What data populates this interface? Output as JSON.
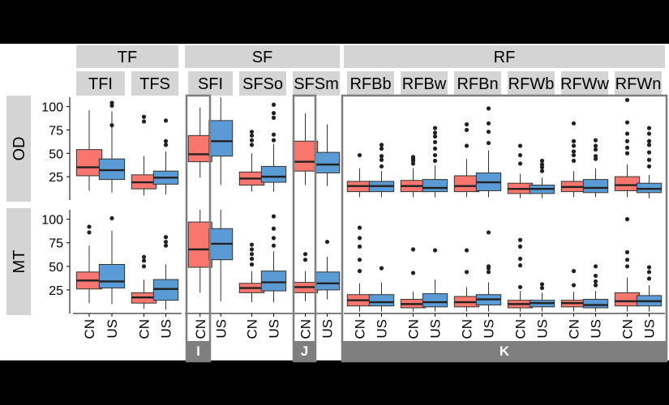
{
  "chart_data": {
    "type": "boxplot",
    "title": "",
    "ylim": [
      0,
      110
    ],
    "yticks": [
      25,
      50,
      75,
      100
    ],
    "groups": [
      "CN",
      "US"
    ],
    "group_colors": {
      "CN": "#f8766d",
      "US": "#5b9bd5"
    },
    "facet_rows": [
      "OD",
      "MT"
    ],
    "categories": [
      {
        "label": "TF",
        "subs": [
          "TFI",
          "TFS"
        ]
      },
      {
        "label": "SF",
        "subs": [
          "SFI",
          "SFSo",
          "SFSm"
        ]
      },
      {
        "label": "RF",
        "subs": [
          "RFBb",
          "RFBw",
          "RFBn",
          "RFWb",
          "RFWw",
          "RFWn"
        ]
      }
    ],
    "annotations": [
      {
        "label": "I",
        "target": "SFI"
      },
      {
        "label": "J",
        "target": "SFSm"
      },
      {
        "label": "K",
        "target": "RF"
      }
    ],
    "panels": {
      "OD": {
        "TFI": {
          "CN": {
            "q1": 26,
            "med": 35,
            "q3": 54,
            "lo": 10,
            "hi": 96,
            "out": []
          },
          "US": {
            "q1": 22,
            "med": 32,
            "q3": 44,
            "lo": 8,
            "hi": 95,
            "out": [
              80,
              101,
              104
            ]
          }
        },
        "TFS": {
          "CN": {
            "q1": 12,
            "med": 19,
            "q3": 27,
            "lo": 5,
            "hi": 47,
            "out": [
              84,
              89
            ]
          },
          "US": {
            "q1": 17,
            "med": 24,
            "q3": 31,
            "lo": 6,
            "hi": 52,
            "out": [
              59,
              63,
              85
            ]
          }
        },
        "SFI": {
          "CN": {
            "q1": 41,
            "med": 49,
            "q3": 69,
            "lo": 24,
            "hi": 99,
            "out": []
          },
          "US": {
            "q1": 47,
            "med": 63,
            "q3": 85,
            "lo": 16,
            "hi": 110,
            "out": []
          }
        },
        "SFSo": {
          "CN": {
            "q1": 16,
            "med": 23,
            "q3": 30,
            "lo": 9,
            "hi": 50,
            "out": [
              59,
              64,
              69,
              73
            ]
          },
          "US": {
            "q1": 19,
            "med": 25,
            "q3": 36,
            "lo": 9,
            "hi": 60,
            "out": [
              64,
              70,
              88,
              93,
              102
            ]
          }
        },
        "SFSm": {
          "CN": {
            "q1": 31,
            "med": 41,
            "q3": 63,
            "lo": 16,
            "hi": 93,
            "out": []
          },
          "US": {
            "q1": 29,
            "med": 38,
            "q3": 51,
            "lo": 15,
            "hi": 81,
            "out": []
          }
        },
        "RFBb": {
          "CN": {
            "q1": 9,
            "med": 15,
            "q3": 20,
            "lo": 3,
            "hi": 34,
            "out": [
              48
            ]
          },
          "US": {
            "q1": 9,
            "med": 15,
            "q3": 20,
            "lo": 3,
            "hi": 31,
            "out": [
              36,
              43,
              47,
              55,
              59
            ]
          }
        },
        "RFBw": {
          "CN": {
            "q1": 9,
            "med": 15,
            "q3": 21,
            "lo": 3,
            "hi": 34,
            "out": [
              39,
              42,
              44,
              46
            ]
          },
          "US": {
            "q1": 9,
            "med": 13,
            "q3": 22,
            "lo": 3,
            "hi": 37,
            "out": [
              42,
              48,
              55,
              62,
              68,
              72,
              77
            ]
          }
        },
        "RFBn": {
          "CN": {
            "q1": 9,
            "med": 15,
            "q3": 26,
            "lo": 3,
            "hi": 44,
            "out": [
              58,
              75,
              81
            ]
          },
          "US": {
            "q1": 10,
            "med": 19,
            "q3": 29,
            "lo": 3,
            "hi": 53,
            "out": [
              61,
              73,
              82,
              98
            ]
          }
        },
        "RFWb": {
          "CN": {
            "q1": 7,
            "med": 12,
            "q3": 18,
            "lo": 2,
            "hi": 28,
            "out": [
              39,
              48,
              58
            ]
          },
          "US": {
            "q1": 7,
            "med": 12,
            "q3": 16,
            "lo": 2,
            "hi": 24,
            "out": [
              31,
              35,
              38,
              42
            ]
          }
        },
        "RFWw": {
          "CN": {
            "q1": 9,
            "med": 14,
            "q3": 20,
            "lo": 3,
            "hi": 31,
            "out": [
              42,
              48,
              52,
              58,
              63,
              82
            ]
          },
          "US": {
            "q1": 8,
            "med": 13,
            "q3": 22,
            "lo": 3,
            "hi": 34,
            "out": [
              44,
              47,
              54,
              58,
              64
            ]
          }
        },
        "RFWn": {
          "CN": {
            "q1": 10,
            "med": 16,
            "q3": 25,
            "lo": 3,
            "hi": 38,
            "out": [
              50,
              56,
              63,
              71,
              83,
              107
            ]
          },
          "US": {
            "q1": 8,
            "med": 12,
            "q3": 18,
            "lo": 2,
            "hi": 27,
            "out": [
              36,
              43,
              51,
              59,
              63,
              71,
              77
            ]
          }
        }
      },
      "MT": {
        "TFI": {
          "CN": {
            "q1": 26,
            "med": 35,
            "q3": 44,
            "lo": 11,
            "hi": 72,
            "out": [
              86,
              92
            ]
          },
          "US": {
            "q1": 27,
            "med": 34,
            "q3": 52,
            "lo": 10,
            "hi": 88,
            "out": [
              101
            ]
          }
        },
        "TFS": {
          "CN": {
            "q1": 11,
            "med": 17,
            "q3": 22,
            "lo": 5,
            "hi": 36,
            "out": [
              50,
              56,
              60
            ]
          },
          "US": {
            "q1": 14,
            "med": 26,
            "q3": 36,
            "lo": 4,
            "hi": 52,
            "out": [
              72,
              76,
              81
            ]
          }
        },
        "SFI": {
          "CN": {
            "q1": 49,
            "med": 68,
            "q3": 97,
            "lo": 22,
            "hi": 110,
            "out": []
          },
          "US": {
            "q1": 57,
            "med": 74,
            "q3": 90,
            "lo": 13,
            "hi": 110,
            "out": []
          }
        },
        "SFSo": {
          "CN": {
            "q1": 22,
            "med": 27,
            "q3": 32,
            "lo": 12,
            "hi": 45,
            "out": [
              52,
              58,
              63,
              68,
              73
            ]
          },
          "US": {
            "q1": 24,
            "med": 33,
            "q3": 45,
            "lo": 12,
            "hi": 66,
            "out": [
              72,
              80,
              90,
              103
            ]
          }
        },
        "SFSm": {
          "CN": {
            "q1": 22,
            "med": 28,
            "q3": 33,
            "lo": 13,
            "hi": 45,
            "out": [
              57,
              63
            ]
          },
          "US": {
            "q1": 25,
            "med": 32,
            "q3": 44,
            "lo": 15,
            "hi": 60,
            "out": [
              76
            ]
          }
        },
        "RFBb": {
          "CN": {
            "q1": 8,
            "med": 14,
            "q3": 20,
            "lo": 2,
            "hi": 32,
            "out": [
              45,
              57,
              71,
              80,
              91
            ]
          },
          "US": {
            "q1": 8,
            "med": 12,
            "q3": 20,
            "lo": 2,
            "hi": 33,
            "out": [
              48
            ]
          }
        },
        "RFBw": {
          "CN": {
            "q1": 6,
            "med": 10,
            "q3": 15,
            "lo": 2,
            "hi": 23,
            "out": [
              43,
              68
            ]
          },
          "US": {
            "q1": 7,
            "med": 12,
            "q3": 21,
            "lo": 2,
            "hi": 36,
            "out": [
              67
            ]
          }
        },
        "RFBn": {
          "CN": {
            "q1": 7,
            "med": 12,
            "q3": 18,
            "lo": 2,
            "hi": 28,
            "out": [
              44,
              67
            ]
          },
          "US": {
            "q1": 9,
            "med": 15,
            "q3": 20,
            "lo": 2,
            "hi": 33,
            "out": [
              44,
              48,
              50,
              86
            ]
          }
        },
        "RFWb": {
          "CN": {
            "q1": 6,
            "med": 10,
            "q3": 14,
            "lo": 2,
            "hi": 24,
            "out": [
              28,
              51,
              58,
              71,
              78
            ]
          },
          "US": {
            "q1": 7,
            "med": 11,
            "q3": 14,
            "lo": 2,
            "hi": 22,
            "out": [
              27,
              31
            ]
          }
        },
        "RFWw": {
          "CN": {
            "q1": 7,
            "med": 11,
            "q3": 14,
            "lo": 2,
            "hi": 23,
            "out": [
              30,
              45
            ]
          },
          "US": {
            "q1": 6,
            "med": 9,
            "q3": 15,
            "lo": 2,
            "hi": 24,
            "out": [
              30,
              34,
              40,
              50
            ]
          }
        },
        "RFWn": {
          "CN": {
            "q1": 8,
            "med": 13,
            "q3": 22,
            "lo": 2,
            "hi": 38,
            "out": [
              50,
              57,
              65,
              100
            ]
          },
          "US": {
            "q1": 8,
            "med": 13,
            "q3": 19,
            "lo": 2,
            "hi": 30,
            "out": [
              37,
              44,
              49
            ]
          }
        }
      }
    }
  }
}
